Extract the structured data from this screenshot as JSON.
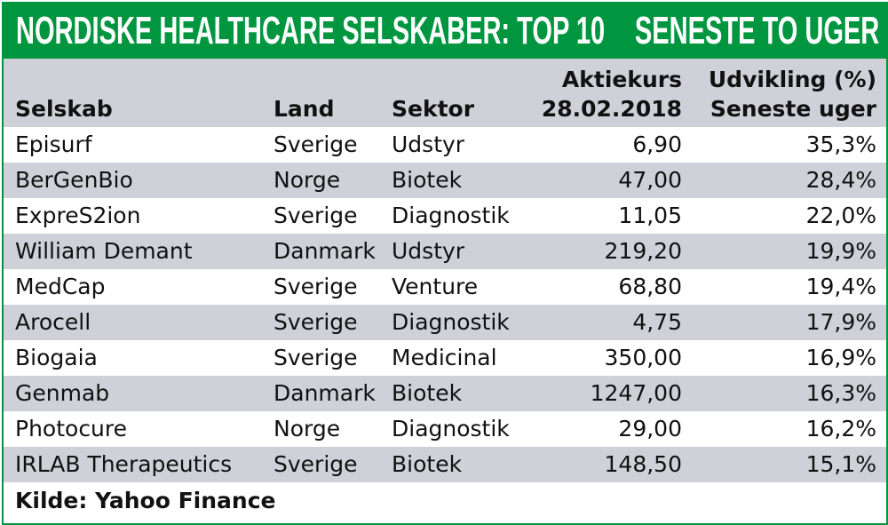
{
  "title": "NORDISKE HEALTHCARE SELSKABER: TOP 10",
  "subtitle": "SENESTE TO UGER",
  "colors": {
    "accent": "#00963f",
    "stripe": "#cfd0d8"
  },
  "headers": {
    "company": "Selskab",
    "country": "Land",
    "sector": "Sektor",
    "price_line1": "Aktiekurs",
    "price_line2": "28.02.2018",
    "change_line1": "Udvikling (%)",
    "change_line2": "Seneste uger"
  },
  "rows": [
    {
      "company": "Episurf",
      "country": "Sverige",
      "sector": "Udstyr",
      "price": "6,90",
      "change": "35,3%"
    },
    {
      "company": "BerGenBio",
      "country": "Norge",
      "sector": "Biotek",
      "price": "47,00",
      "change": "28,4%"
    },
    {
      "company": "ExpreS2ion",
      "country": "Sverige",
      "sector": "Diagnostik",
      "price": "11,05",
      "change": "22,0%"
    },
    {
      "company": "William Demant",
      "country": "Danmark",
      "sector": "Udstyr",
      "price": "219,20",
      "change": "19,9%"
    },
    {
      "company": "MedCap",
      "country": "Sverige",
      "sector": "Venture",
      "price": "68,80",
      "change": "19,4%"
    },
    {
      "company": "Arocell",
      "country": "Sverige",
      "sector": "Diagnostik",
      "price": "4,75",
      "change": "17,9%"
    },
    {
      "company": "Biogaia",
      "country": "Sverige",
      "sector": "Medicinal",
      "price": "350,00",
      "change": "16,9%"
    },
    {
      "company": "Genmab",
      "country": "Danmark",
      "sector": "Biotek",
      "price": "1247,00",
      "change": "16,3%"
    },
    {
      "company": "Photocure",
      "country": "Norge",
      "sector": "Diagnostik",
      "price": "29,00",
      "change": "16,2%"
    },
    {
      "company": "IRLAB Therapeutics",
      "country": "Sverige",
      "sector": "Biotek",
      "price": "148,50",
      "change": "15,1%"
    }
  ],
  "source": "Kilde: Yahoo Finance"
}
